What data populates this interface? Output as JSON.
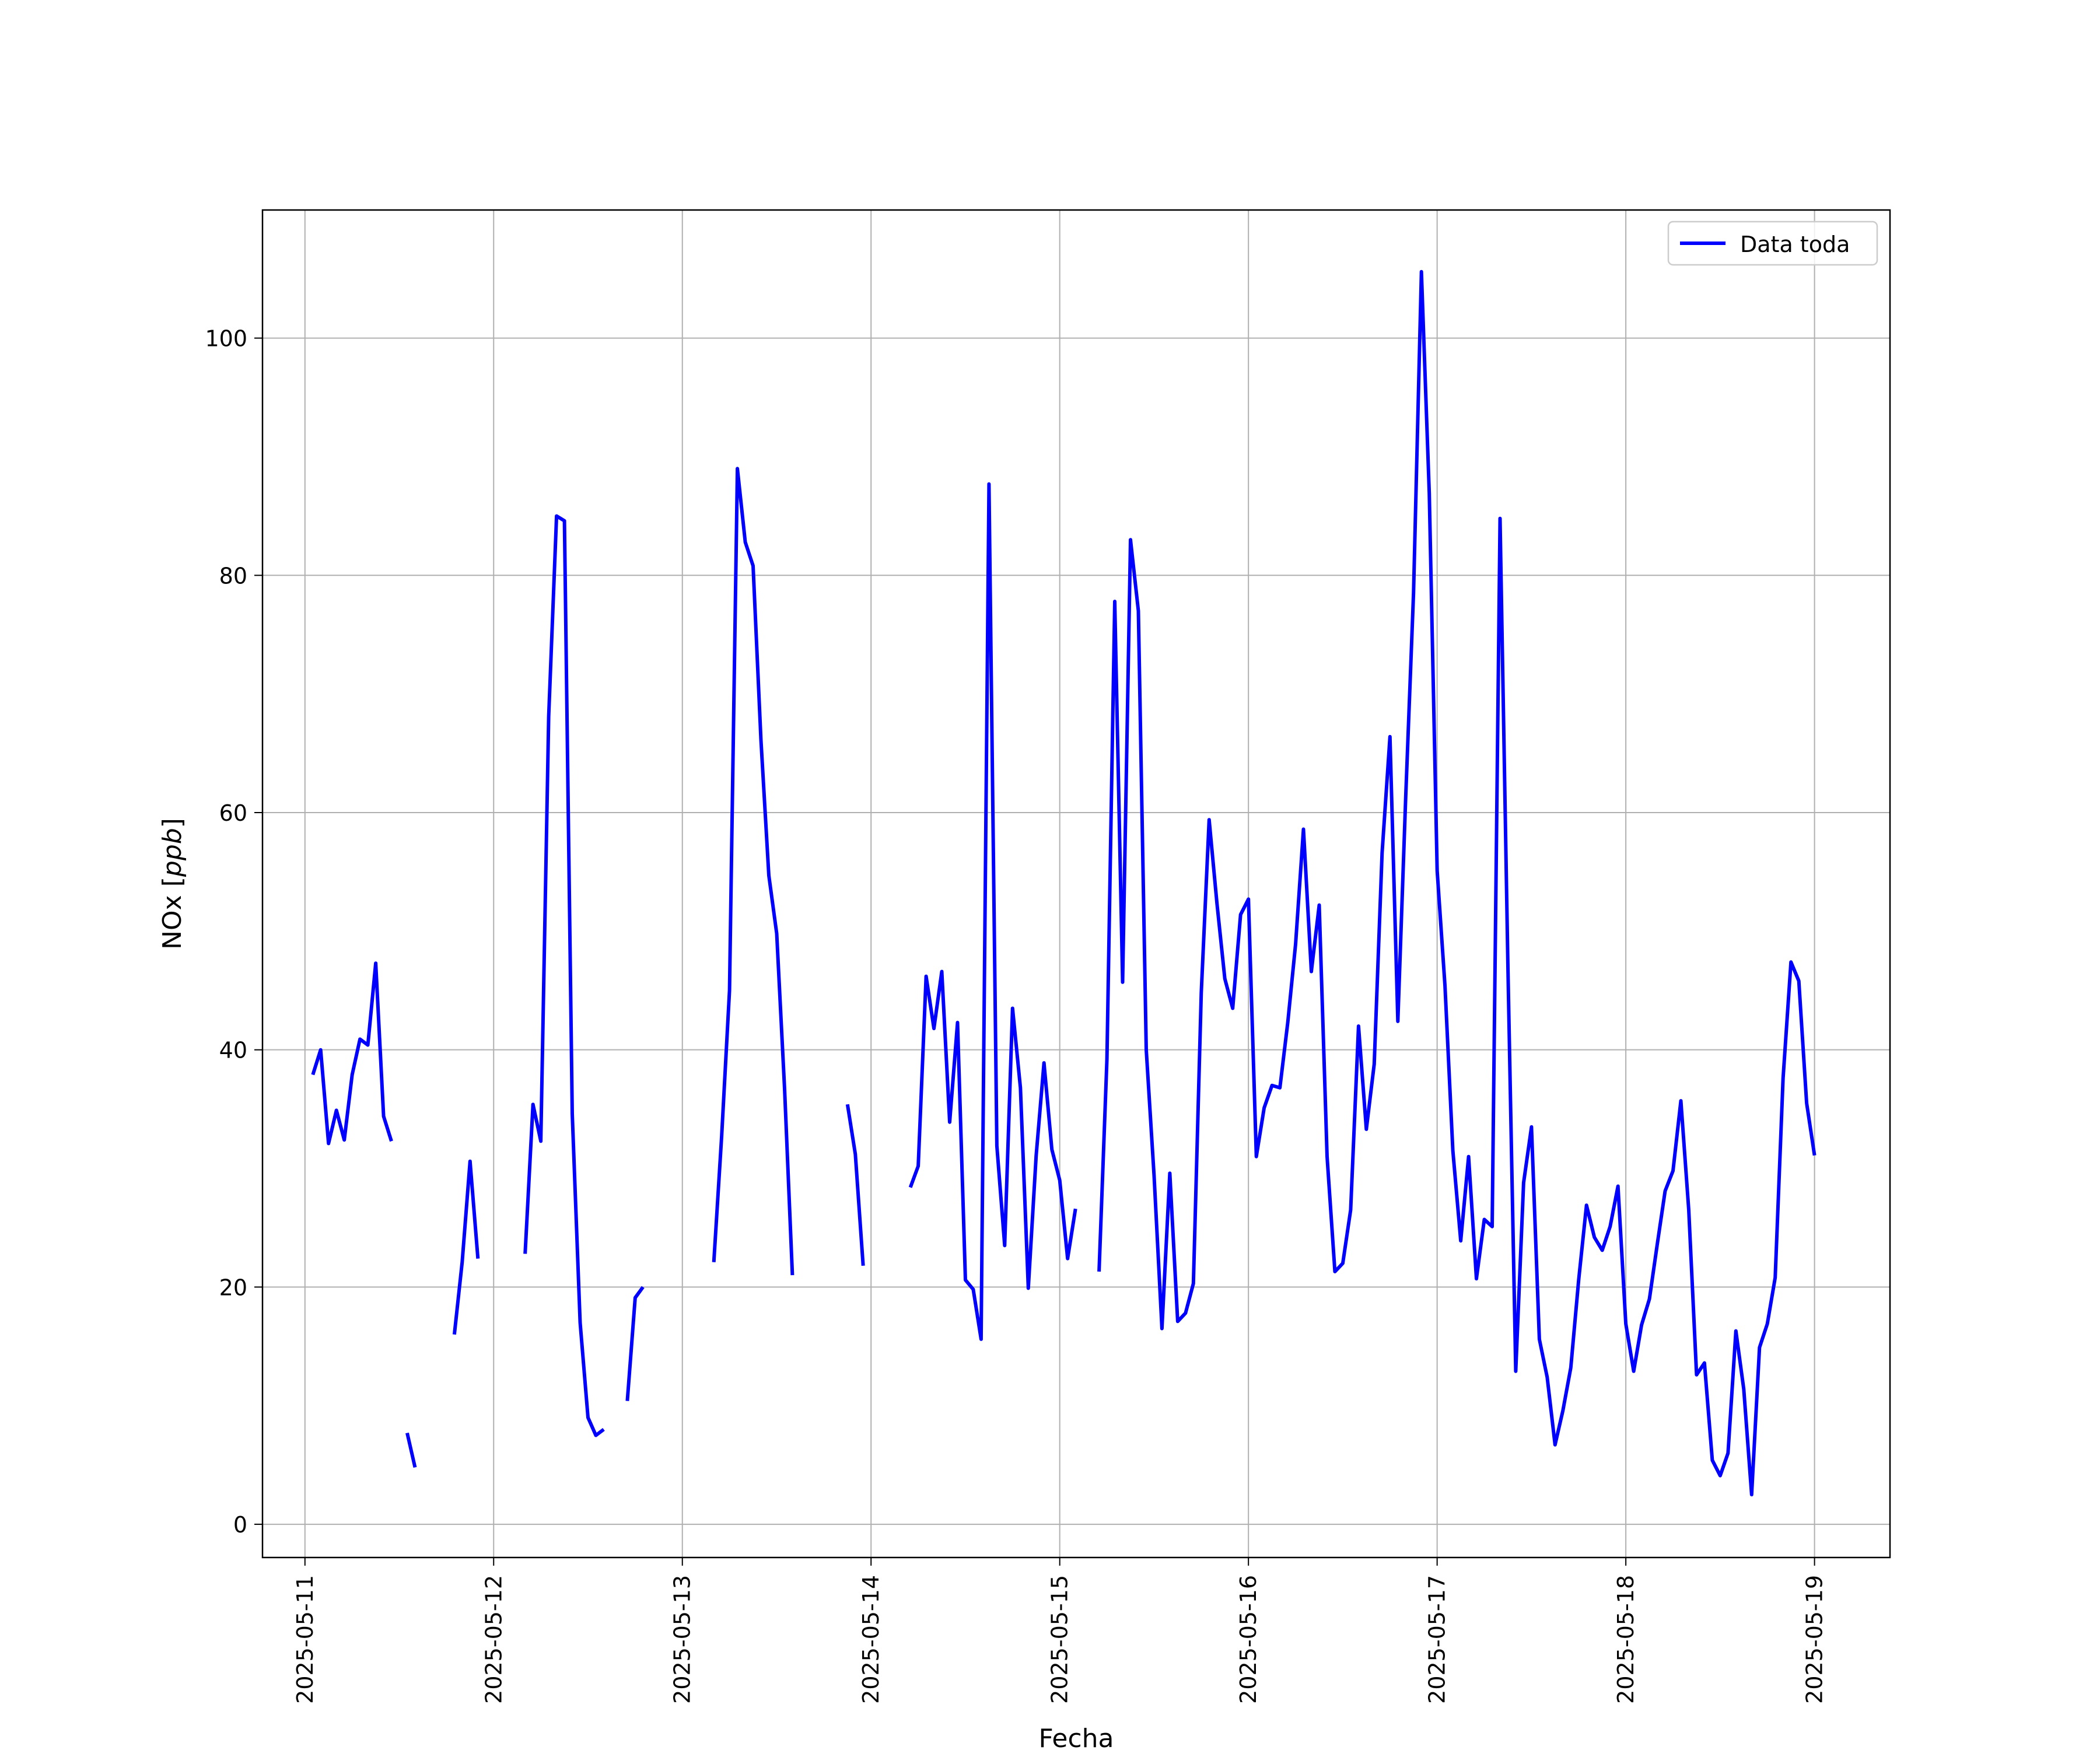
{
  "chart_data": {
    "type": "line",
    "title": "",
    "xlabel": "Fecha",
    "ylabel": "NOx [ppb]",
    "ylabel_prefix": "NOx ",
    "ylabel_unit": "ppb",
    "xlim": [
      "2025-05-10T18:36",
      "2025-05-19T09:36"
    ],
    "ylim": [
      -2.8,
      110.8
    ],
    "grid": true,
    "legend_position": "upper right",
    "x_ticks": [
      "2025-05-11",
      "2025-05-12",
      "2025-05-13",
      "2025-05-14",
      "2025-05-15",
      "2025-05-16",
      "2025-05-17",
      "2025-05-18",
      "2025-05-19"
    ],
    "y_ticks": [
      0,
      20,
      40,
      60,
      80,
      100
    ],
    "series": [
      {
        "name": "Data toda",
        "color": "#0000ff",
        "points": [
          [
            "2025-05-11T01:00",
            37.9
          ],
          [
            "2025-05-11T02:00",
            40.0
          ],
          [
            "2025-05-11T03:00",
            32.1
          ],
          [
            "2025-05-11T04:00",
            34.9
          ],
          [
            "2025-05-11T05:00",
            32.4
          ],
          [
            "2025-05-11T06:00",
            37.9
          ],
          [
            "2025-05-11T07:00",
            40.9
          ],
          [
            "2025-05-11T08:00",
            40.4
          ],
          [
            "2025-05-11T09:00",
            47.3
          ],
          [
            "2025-05-11T10:00",
            34.4
          ],
          [
            "2025-05-11T11:00",
            32.3
          ],
          [
            "2025-05-11T12:00",
            null
          ],
          [
            "2025-05-11T13:00",
            7.7
          ],
          [
            "2025-05-11T14:00",
            4.8
          ],
          [
            "2025-05-11T15:00",
            null
          ],
          [
            "2025-05-11T19:00",
            16.0
          ],
          [
            "2025-05-11T20:00",
            22.1
          ],
          [
            "2025-05-11T21:00",
            30.6
          ],
          [
            "2025-05-11T22:00",
            22.4
          ],
          [
            "2025-05-11T23:00",
            null
          ],
          [
            "2025-05-12T04:00",
            22.8
          ],
          [
            "2025-05-12T05:00",
            35.4
          ],
          [
            "2025-05-12T06:00",
            32.3
          ],
          [
            "2025-05-12T07:00",
            68.1
          ],
          [
            "2025-05-12T08:00",
            85.0
          ],
          [
            "2025-05-12T09:00",
            84.6
          ],
          [
            "2025-05-12T10:00",
            34.6
          ],
          [
            "2025-05-12T11:00",
            17.0
          ],
          [
            "2025-05-12T12:00",
            9.0
          ],
          [
            "2025-05-12T13:00",
            7.5
          ],
          [
            "2025-05-12T14:00",
            8.0
          ],
          [
            "2025-05-12T15:00",
            null
          ],
          [
            "2025-05-12T17:00",
            10.4
          ],
          [
            "2025-05-12T18:00",
            19.1
          ],
          [
            "2025-05-12T19:00",
            20.0
          ],
          [
            "2025-05-12T20:00",
            null
          ],
          [
            "2025-05-13T04:00",
            22.1
          ],
          [
            "2025-05-13T05:00",
            32.7
          ],
          [
            "2025-05-13T06:00",
            45.0
          ],
          [
            "2025-05-13T07:00",
            89.0
          ],
          [
            "2025-05-13T08:00",
            82.8
          ],
          [
            "2025-05-13T09:00",
            80.8
          ],
          [
            "2025-05-13T10:00",
            66.1
          ],
          [
            "2025-05-13T11:00",
            54.7
          ],
          [
            "2025-05-13T12:00",
            49.8
          ],
          [
            "2025-05-13T13:00",
            36.7
          ],
          [
            "2025-05-13T14:00",
            21.0
          ],
          [
            "2025-05-13T15:00",
            null
          ],
          [
            "2025-05-13T21:00",
            35.4
          ],
          [
            "2025-05-13T22:00",
            31.2
          ],
          [
            "2025-05-13T23:00",
            21.8
          ],
          [
            "2025-05-14T00:00",
            null
          ],
          [
            "2025-05-14T05:00",
            28.4
          ],
          [
            "2025-05-14T06:00",
            30.2
          ],
          [
            "2025-05-14T07:00",
            46.2
          ],
          [
            "2025-05-14T08:00",
            41.8
          ],
          [
            "2025-05-14T09:00",
            46.6
          ],
          [
            "2025-05-14T10:00",
            33.9
          ],
          [
            "2025-05-14T11:00",
            42.3
          ],
          [
            "2025-05-14T12:00",
            20.6
          ],
          [
            "2025-05-14T13:00",
            19.8
          ],
          [
            "2025-05-14T14:00",
            15.6
          ],
          [
            "2025-05-14T15:00",
            87.7
          ],
          [
            "2025-05-14T16:00",
            31.9
          ],
          [
            "2025-05-14T17:00",
            23.5
          ],
          [
            "2025-05-14T18:00",
            43.5
          ],
          [
            "2025-05-14T19:00",
            36.8
          ],
          [
            "2025-05-14T20:00",
            19.9
          ],
          [
            "2025-05-14T21:00",
            31.1
          ],
          [
            "2025-05-14T22:00",
            38.9
          ],
          [
            "2025-05-14T23:00",
            31.6
          ],
          [
            "2025-05-15T00:00",
            29.0
          ],
          [
            "2025-05-15T01:00",
            22.4
          ],
          [
            "2025-05-15T02:00",
            26.6
          ],
          [
            "2025-05-15T03:00",
            null
          ],
          [
            "2025-05-15T05:00",
            21.3
          ],
          [
            "2025-05-15T06:00",
            39.2
          ],
          [
            "2025-05-15T07:00",
            77.8
          ],
          [
            "2025-05-15T08:00",
            45.7
          ],
          [
            "2025-05-15T09:00",
            83.0
          ],
          [
            "2025-05-15T10:00",
            77.0
          ],
          [
            "2025-05-15T11:00",
            40.0
          ],
          [
            "2025-05-15T12:00",
            29.4
          ],
          [
            "2025-05-15T13:00",
            16.5
          ],
          [
            "2025-05-15T14:00",
            29.6
          ],
          [
            "2025-05-15T15:00",
            17.1
          ],
          [
            "2025-05-15T16:00",
            17.8
          ],
          [
            "2025-05-15T17:00",
            20.3
          ],
          [
            "2025-05-15T18:00",
            44.8
          ],
          [
            "2025-05-15T19:00",
            59.4
          ],
          [
            "2025-05-15T20:00",
            52.3
          ],
          [
            "2025-05-15T21:00",
            46.0
          ],
          [
            "2025-05-15T22:00",
            43.5
          ],
          [
            "2025-05-15T23:00",
            51.4
          ],
          [
            "2025-05-16T00:00",
            52.7
          ],
          [
            "2025-05-16T01:00",
            31.0
          ],
          [
            "2025-05-16T02:00",
            35.1
          ],
          [
            "2025-05-16T03:00",
            37.0
          ],
          [
            "2025-05-16T04:00",
            36.8
          ],
          [
            "2025-05-16T05:00",
            42.3
          ],
          [
            "2025-05-16T06:00",
            48.9
          ],
          [
            "2025-05-16T07:00",
            58.6
          ],
          [
            "2025-05-16T08:00",
            46.6
          ],
          [
            "2025-05-16T09:00",
            52.2
          ],
          [
            "2025-05-16T10:00",
            31.0
          ],
          [
            "2025-05-16T11:00",
            21.3
          ],
          [
            "2025-05-16T12:00",
            22.0
          ],
          [
            "2025-05-16T13:00",
            26.5
          ],
          [
            "2025-05-16T14:00",
            42.0
          ],
          [
            "2025-05-16T15:00",
            33.3
          ],
          [
            "2025-05-16T16:00",
            38.8
          ],
          [
            "2025-05-16T17:00",
            56.6
          ],
          [
            "2025-05-16T18:00",
            66.4
          ],
          [
            "2025-05-16T19:00",
            42.4
          ],
          [
            "2025-05-16T20:00",
            61.2
          ],
          [
            "2025-05-16T21:00",
            78.5
          ],
          [
            "2025-05-16T22:00",
            105.6
          ],
          [
            "2025-05-16T23:00",
            86.9
          ],
          [
            "2025-05-17T00:00",
            55.1
          ],
          [
            "2025-05-17T01:00",
            45.4
          ],
          [
            "2025-05-17T02:00",
            31.5
          ],
          [
            "2025-05-17T03:00",
            23.9
          ],
          [
            "2025-05-17T04:00",
            31.0
          ],
          [
            "2025-05-17T05:00",
            20.7
          ],
          [
            "2025-05-17T06:00",
            25.7
          ],
          [
            "2025-05-17T07:00",
            25.1
          ],
          [
            "2025-05-17T08:00",
            84.8
          ],
          [
            "2025-05-17T09:00",
            47.0
          ],
          [
            "2025-05-17T10:00",
            12.9
          ],
          [
            "2025-05-17T11:00",
            28.8
          ],
          [
            "2025-05-17T12:00",
            33.5
          ],
          [
            "2025-05-17T13:00",
            15.6
          ],
          [
            "2025-05-17T14:00",
            12.4
          ],
          [
            "2025-05-17T15:00",
            6.7
          ],
          [
            "2025-05-17T16:00",
            9.6
          ],
          [
            "2025-05-17T17:00",
            13.2
          ],
          [
            "2025-05-17T18:00",
            20.6
          ],
          [
            "2025-05-17T19:00",
            26.9
          ],
          [
            "2025-05-17T20:00",
            24.2
          ],
          [
            "2025-05-17T21:00",
            23.1
          ],
          [
            "2025-05-17T22:00",
            25.1
          ],
          [
            "2025-05-17T23:00",
            28.5
          ],
          [
            "2025-05-18T00:00",
            16.9
          ],
          [
            "2025-05-18T01:00",
            12.9
          ],
          [
            "2025-05-18T02:00",
            16.8
          ],
          [
            "2025-05-18T03:00",
            19.0
          ],
          [
            "2025-05-18T04:00",
            23.6
          ],
          [
            "2025-05-18T05:00",
            28.1
          ],
          [
            "2025-05-18T06:00",
            29.8
          ],
          [
            "2025-05-18T07:00",
            35.7
          ],
          [
            "2025-05-18T08:00",
            26.5
          ],
          [
            "2025-05-18T09:00",
            12.6
          ],
          [
            "2025-05-18T10:00",
            13.6
          ],
          [
            "2025-05-18T11:00",
            5.4
          ],
          [
            "2025-05-18T12:00",
            4.1
          ],
          [
            "2025-05-18T13:00",
            6.0
          ],
          [
            "2025-05-18T14:00",
            16.3
          ],
          [
            "2025-05-18T15:00",
            11.4
          ],
          [
            "2025-05-18T16:00",
            2.5
          ],
          [
            "2025-05-18T17:00",
            14.9
          ],
          [
            "2025-05-18T18:00",
            16.9
          ],
          [
            "2025-05-18T19:00",
            20.8
          ],
          [
            "2025-05-18T20:00",
            37.6
          ],
          [
            "2025-05-18T21:00",
            47.4
          ],
          [
            "2025-05-18T22:00",
            45.8
          ],
          [
            "2025-05-18T23:00",
            35.5
          ],
          [
            "2025-05-19T00:00",
            31.1
          ]
        ]
      }
    ]
  }
}
